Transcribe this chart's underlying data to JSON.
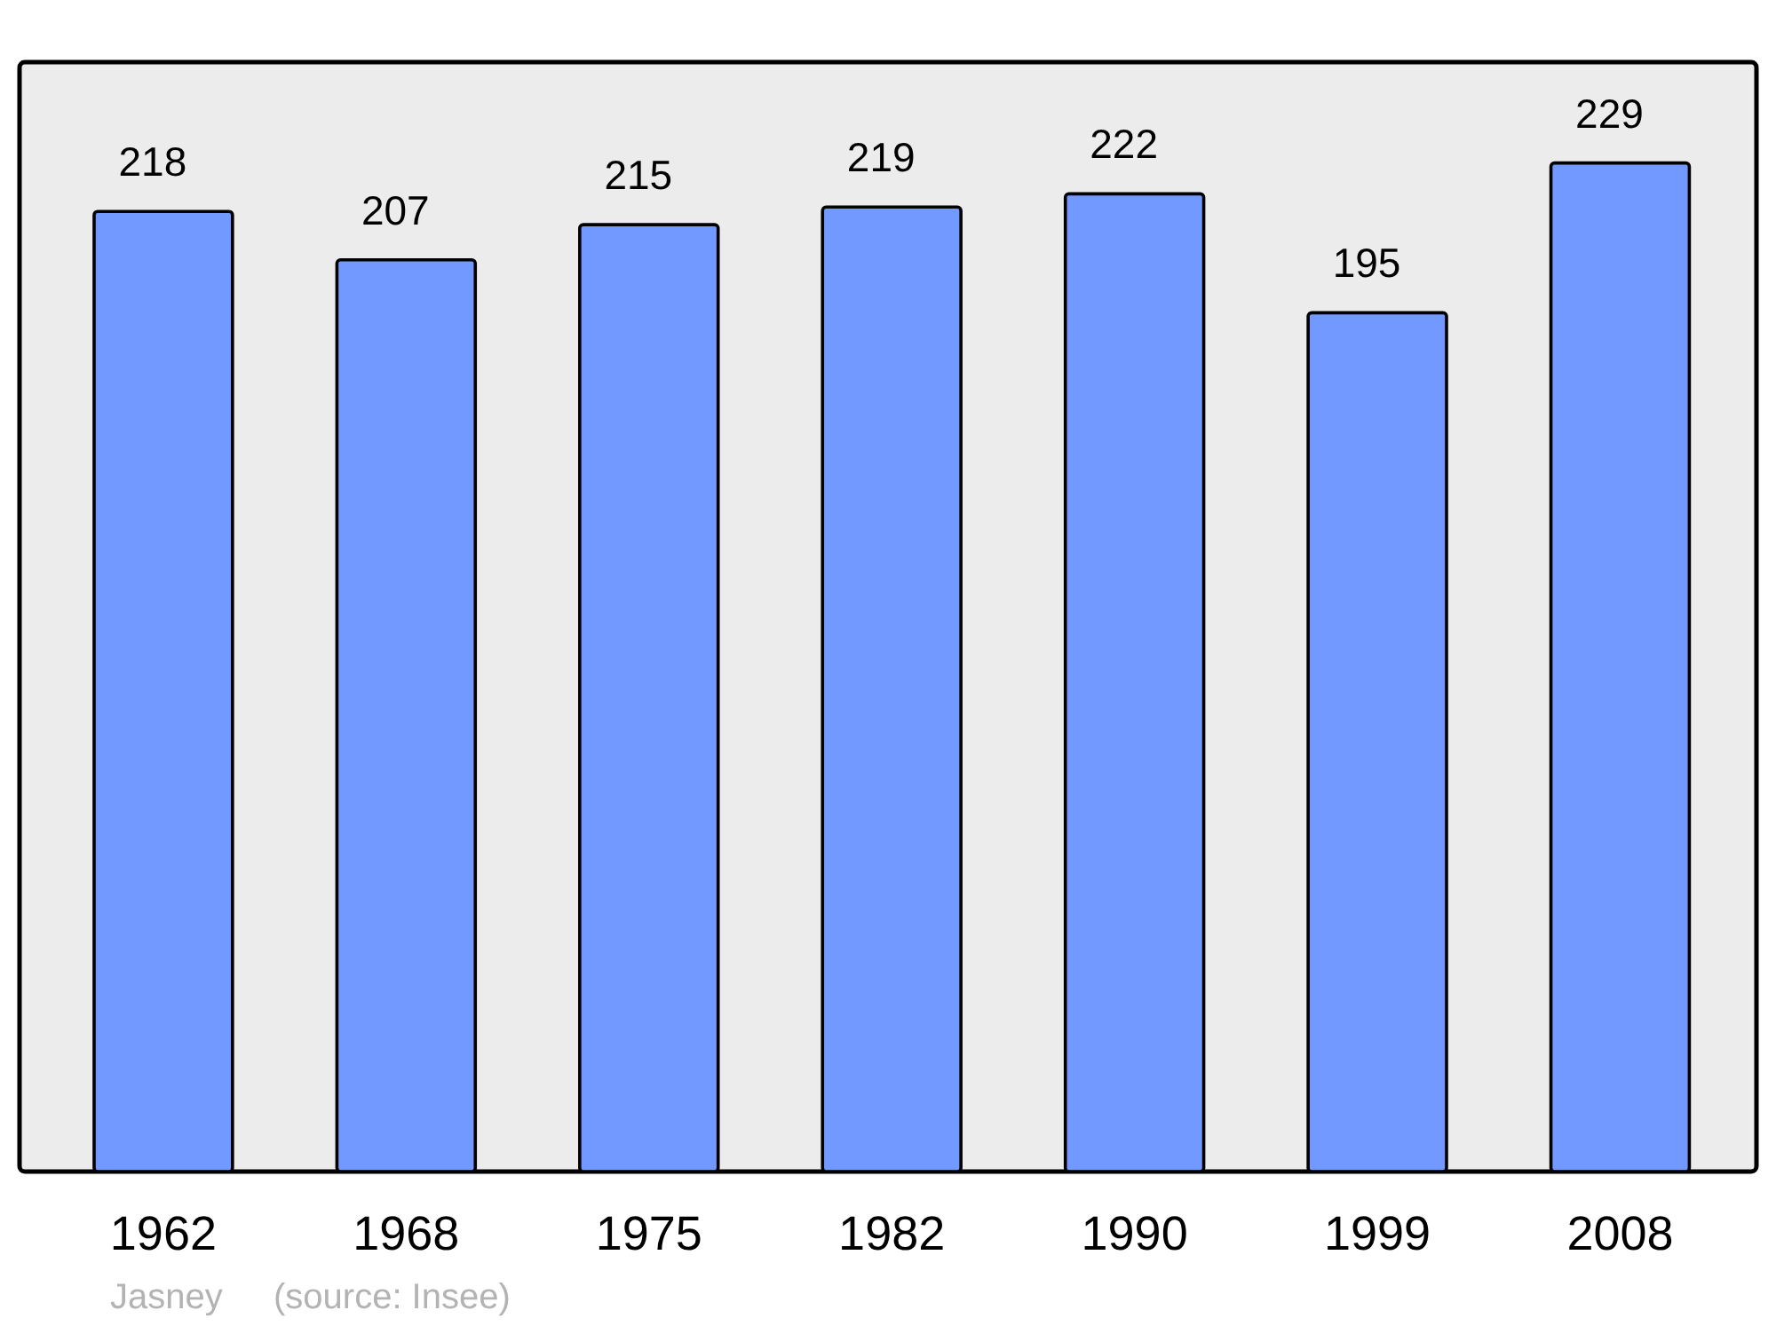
{
  "chart_data": {
    "type": "bar",
    "categories": [
      "1962",
      "1968",
      "1975",
      "1982",
      "1990",
      "1999",
      "2008"
    ],
    "values": [
      218,
      207,
      215,
      219,
      222,
      195,
      229
    ],
    "color": "#7299ff",
    "data_labels": true,
    "annotations": [
      "Jasney",
      "(source: Insee)"
    ]
  }
}
